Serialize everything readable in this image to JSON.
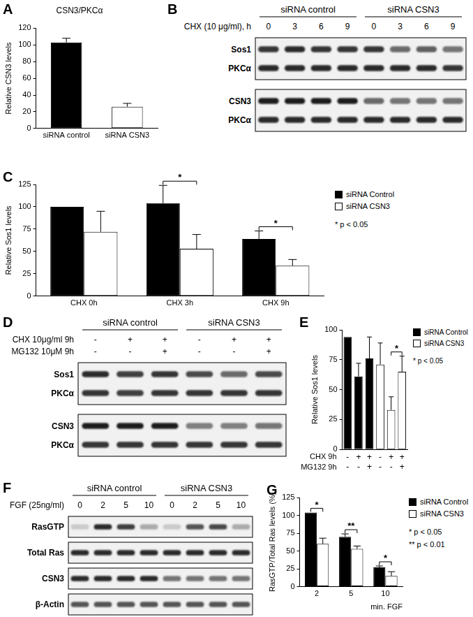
{
  "chart_data": [
    {
      "panel": "A",
      "type": "bar",
      "title": "CSN3/PKCα",
      "y_label": "Relative CSN3 levels",
      "categories": [
        "siRNA control",
        "siRNA CSN3"
      ],
      "values": [
        103,
        26
      ],
      "errors": [
        5,
        4
      ],
      "colors": [
        "#000000",
        "#ffffff"
      ],
      "ylim": [
        0,
        120
      ],
      "yticks": [
        0,
        20,
        40,
        60,
        80,
        100,
        120
      ],
      "grid": false
    },
    {
      "panel": "C",
      "type": "bar",
      "y_label": "Relative Sos1 levels",
      "categories": [
        "CHX 0h",
        "CHX 3h",
        "CHX 9h"
      ],
      "series": [
        {
          "name": "siRNA Control",
          "color": "#000000",
          "values": [
            100,
            104,
            64
          ],
          "errors": [
            0,
            20,
            9
          ]
        },
        {
          "name": "siRNA CSN3",
          "color": "#ffffff",
          "values": [
            72,
            53,
            34
          ],
          "errors": [
            23,
            16,
            7
          ]
        }
      ],
      "ylim": [
        0,
        125
      ],
      "yticks": [
        0,
        25,
        50,
        75,
        100,
        125
      ],
      "grid": false,
      "legend": "right",
      "notes": [
        "* p < 0.05"
      ],
      "significance": [
        {
          "between": [
            [
              0,
              1
            ],
            [
              1,
              1
            ]
          ],
          "text": "*"
        },
        {
          "between": [
            [
              0,
              2
            ],
            [
              1,
              2
            ]
          ],
          "text": "*"
        }
      ]
    },
    {
      "panel": "E",
      "type": "bar",
      "y_label": "Relative Sos1 levels",
      "categories": [
        [
          "-",
          "-"
        ],
        [
          "+",
          "-"
        ],
        [
          "+",
          "+"
        ],
        [
          "-",
          "-"
        ],
        [
          "+",
          "-"
        ],
        [
          "+",
          "+"
        ]
      ],
      "row_labels": [
        "CHX 9h",
        "MG132 9h"
      ],
      "series": [
        {
          "name": "siRNA Control",
          "color": "#000000",
          "values": [
            94,
            61,
            76,
            null,
            null,
            null
          ],
          "errors": [
            0,
            11,
            18,
            null,
            null,
            null
          ]
        },
        {
          "name": "siRNA CSN3",
          "color": "#ffffff",
          "values": [
            null,
            null,
            null,
            71,
            33,
            65
          ],
          "errors": [
            null,
            null,
            null,
            18,
            11,
            13
          ]
        }
      ],
      "ylim": [
        0,
        100
      ],
      "yticks": [
        0,
        25,
        50,
        75,
        100
      ],
      "grid": false,
      "legend": "right",
      "notes": [
        "* p < 0.05"
      ],
      "significance": [
        {
          "between": [
            [
              1,
              4
            ],
            [
              1,
              5
            ]
          ],
          "text": "*"
        }
      ]
    },
    {
      "panel": "G",
      "type": "bar",
      "y_label": "RasGTP/Total Ras levels (%)",
      "x_label": "min. FGF",
      "categories": [
        "2",
        "5",
        "10"
      ],
      "series": [
        {
          "name": "siRNA Control",
          "color": "#000000",
          "values": [
            104,
            70,
            27
          ],
          "errors": [
            0,
            4,
            2
          ]
        },
        {
          "name": "siRNA CSN3",
          "color": "#ffffff",
          "values": [
            60,
            53,
            15
          ],
          "errors": [
            8,
            4,
            6
          ]
        }
      ],
      "ylim": [
        0,
        125
      ],
      "yticks": [
        0,
        25,
        50,
        75,
        100,
        125
      ],
      "grid": false,
      "legend": "right",
      "notes": [
        "* p < 0.05",
        "** p < 0.01"
      ],
      "significance": [
        {
          "between": [
            [
              0,
              0
            ],
            [
              1,
              0
            ]
          ],
          "text": "*"
        },
        {
          "between": [
            [
              0,
              1
            ],
            [
              1,
              1
            ]
          ],
          "text": "**"
        },
        {
          "between": [
            [
              0,
              2
            ],
            [
              1,
              2
            ]
          ],
          "text": "*"
        }
      ]
    }
  ],
  "blots": [
    {
      "panel": "B",
      "groups": [
        "siRNA control",
        "siRNA CSN3"
      ],
      "conditions": [
        {
          "label": "CHX (10 μg/ml), h",
          "lanes": [
            "0",
            "3",
            "6",
            "9",
            "0",
            "3",
            "6",
            "9"
          ]
        }
      ],
      "blocks": [
        [
          {
            "name": "Sos1",
            "intensity": [
              0.85,
              0.9,
              0.85,
              0.85,
              0.85,
              0.6,
              0.65,
              0.55
            ]
          },
          {
            "name": "PKCα",
            "intensity": [
              0.9,
              0.9,
              0.9,
              0.9,
              0.9,
              0.9,
              0.9,
              0.85
            ]
          }
        ],
        [
          {
            "name": "CSN3",
            "intensity": [
              0.95,
              0.95,
              0.95,
              0.95,
              0.6,
              0.55,
              0.55,
              0.55
            ]
          },
          {
            "name": "PKCα",
            "intensity": [
              0.9,
              0.9,
              0.9,
              0.9,
              0.9,
              0.9,
              0.9,
              0.9
            ]
          }
        ]
      ]
    },
    {
      "panel": "D",
      "groups": [
        "siRNA control",
        "siRNA CSN3"
      ],
      "conditions": [
        {
          "label": "CHX 10μg/ml 9h",
          "lanes": [
            "-",
            "+",
            "+",
            "-",
            "+",
            "+"
          ]
        },
        {
          "label": "MG132 10μM 9h",
          "lanes": [
            "-",
            "-",
            "+",
            "-",
            "-",
            "+"
          ]
        }
      ],
      "blocks": [
        [
          {
            "name": "Sos1",
            "intensity": [
              0.9,
              0.8,
              0.85,
              0.75,
              0.6,
              0.75
            ]
          },
          {
            "name": "PKCα",
            "intensity": [
              0.85,
              0.8,
              0.85,
              0.85,
              0.85,
              0.85
            ]
          }
        ],
        [
          {
            "name": "CSN3",
            "intensity": [
              0.95,
              0.95,
              0.95,
              0.5,
              0.5,
              0.55
            ]
          },
          {
            "name": "PKCα",
            "intensity": [
              0.85,
              0.85,
              0.85,
              0.85,
              0.85,
              0.85
            ]
          }
        ]
      ]
    },
    {
      "panel": "F",
      "groups": [
        "siRNA control",
        "siRNA CSN3"
      ],
      "conditions": [
        {
          "label": "FGF (25ng/ml)",
          "lanes": [
            "0",
            "2",
            "5",
            "10",
            "0",
            "2",
            "5",
            "10"
          ]
        }
      ],
      "blocks": [
        [
          {
            "name": "RasGTP",
            "intensity": [
              0.15,
              0.9,
              0.8,
              0.3,
              0.15,
              0.7,
              0.75,
              0.3
            ]
          }
        ],
        [
          {
            "name": "Total Ras",
            "intensity": [
              0.9,
              0.9,
              0.9,
              0.9,
              0.9,
              0.9,
              0.9,
              0.9
            ]
          }
        ],
        [
          {
            "name": "CSN3",
            "intensity": [
              0.9,
              0.9,
              0.9,
              0.9,
              0.55,
              0.55,
              0.55,
              0.55
            ]
          }
        ],
        [
          {
            "name": "β-Actin",
            "intensity": [
              0.7,
              0.7,
              0.7,
              0.7,
              0.7,
              0.7,
              0.7,
              0.7
            ]
          }
        ]
      ]
    }
  ]
}
